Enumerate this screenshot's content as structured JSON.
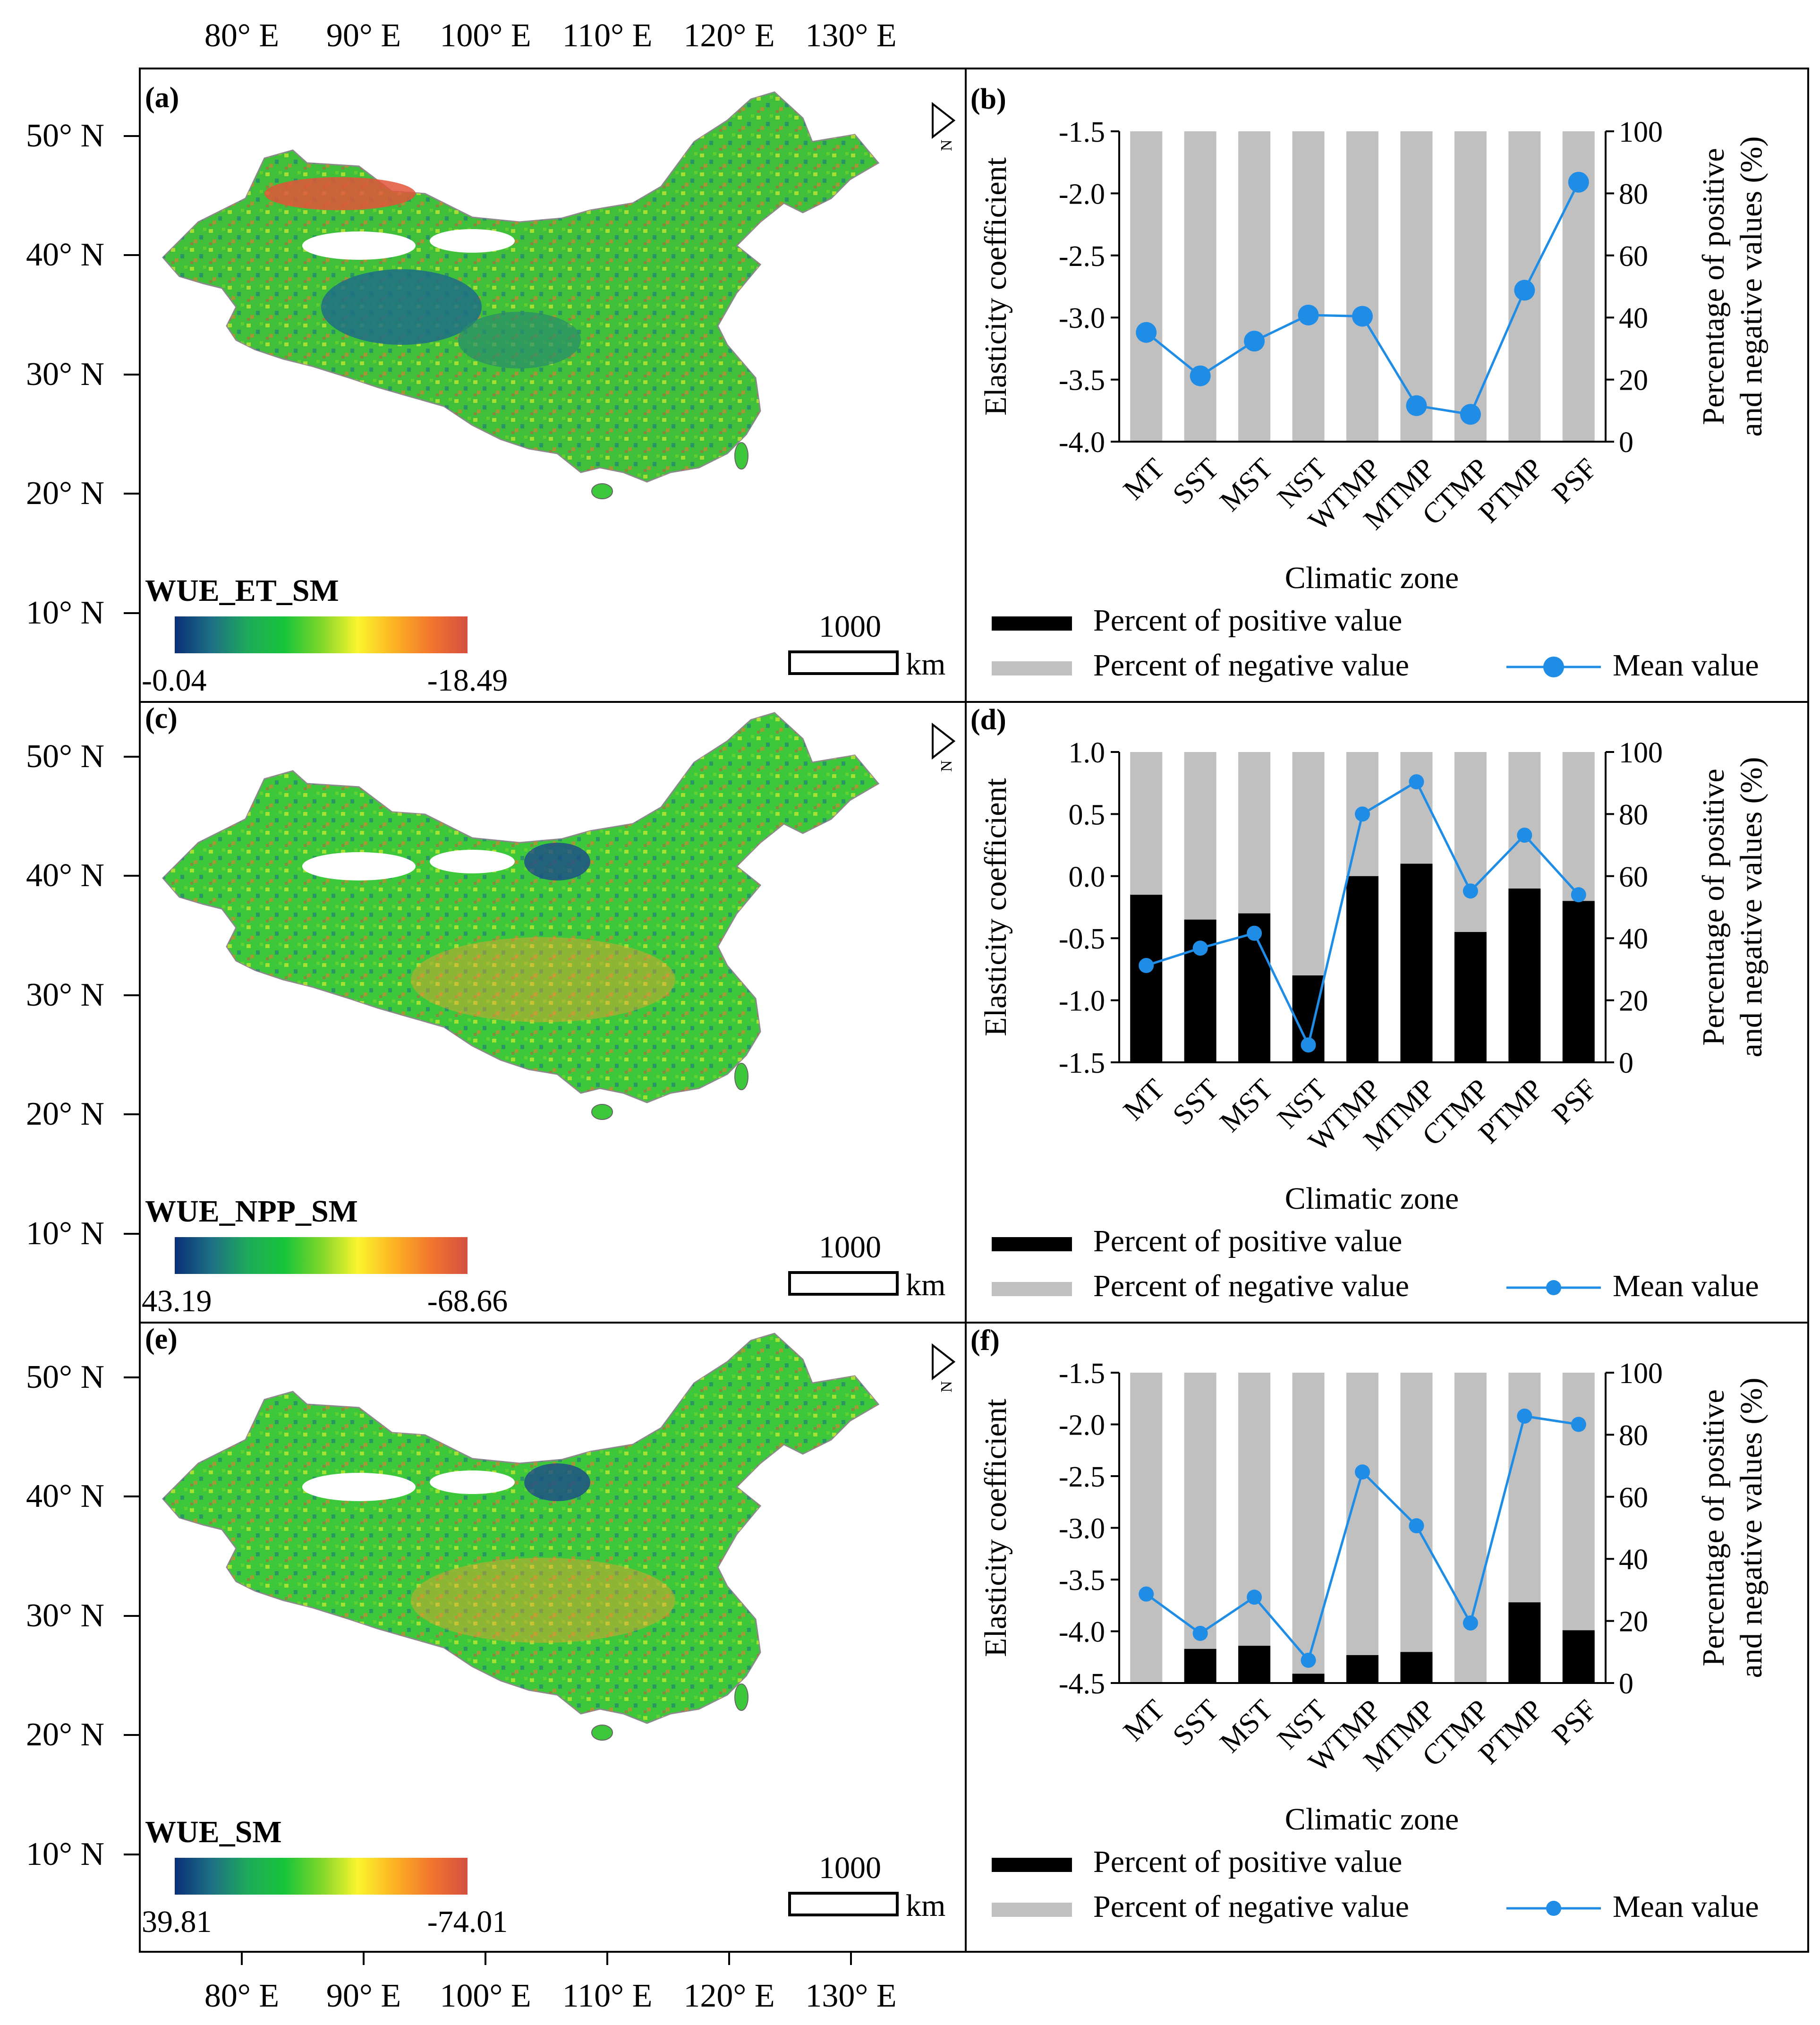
{
  "figure": {
    "lon_ticks": [
      "80° E",
      "90° E",
      "100° E",
      "110° E",
      "120° E",
      "130° E"
    ],
    "lat_ticks": [
      "50° N",
      "40° N",
      "30° N",
      "20° N",
      "10° N"
    ],
    "north_label": "N",
    "scale_value": "1000",
    "scale_unit": "km",
    "colors": {
      "ramp": [
        "#0b2f78",
        "#1d6f86",
        "#1faa5a",
        "#17c43a",
        "#7fd62a",
        "#fbf52e",
        "#fcb224",
        "#f2762f",
        "#d4503f"
      ],
      "positive_bar": "#000000",
      "negative_bar": "#c0c0c0",
      "mean_line": "#1f8ce6"
    }
  },
  "maps": [
    {
      "panel": "(a)",
      "legend_title": "WUE_ET_SM",
      "min_label": "-0.04",
      "max_label": "-18.49"
    },
    {
      "panel": "(c)",
      "legend_title": "WUE_NPP_SM",
      "min_label": "43.19",
      "max_label": "-68.66"
    },
    {
      "panel": "(e)",
      "legend_title": "WUE_SM",
      "min_label": "39.81",
      "max_label": "-74.01"
    }
  ],
  "chart_data": [
    {
      "panel": "(b)",
      "type": "bar",
      "categories": [
        "MT",
        "SST",
        "MST",
        "NST",
        "WTMP",
        "MTMP",
        "CTMP",
        "PTMP",
        "PSF"
      ],
      "xlabel": "Climatic zone",
      "ylabel": "Elasticity coefficient",
      "ylabel_right_1": "Percentage of positive",
      "ylabel_right_2": "and negative values (%)",
      "ylim": [
        -4.0,
        -1.5
      ],
      "yticks": [
        "-1.5",
        "-2.0",
        "-2.5",
        "-3.0",
        "-3.5",
        "-4.0"
      ],
      "y2lim": [
        0,
        100
      ],
      "y2ticks": [
        "100",
        "80",
        "60",
        "40",
        "20",
        "0"
      ],
      "series": [
        {
          "name": "Percent of positive value",
          "values": [
            0,
            0,
            0,
            0,
            0,
            0,
            0,
            0,
            0
          ]
        },
        {
          "name": "Percent of negative value",
          "values": [
            100,
            100,
            100,
            100,
            100,
            100,
            100,
            100,
            100
          ]
        },
        {
          "name": "Mean value",
          "values": [
            -3.12,
            -3.47,
            -3.19,
            -2.98,
            -2.99,
            -3.71,
            -3.78,
            -2.78,
            -1.91
          ]
        }
      ]
    },
    {
      "panel": "(d)",
      "type": "bar",
      "categories": [
        "MT",
        "SST",
        "MST",
        "NST",
        "WTMP",
        "MTMP",
        "CTMP",
        "PTMP",
        "PSF"
      ],
      "xlabel": "Climatic zone",
      "ylabel": "Elasticity coefficient",
      "ylabel_right_1": "Percentage of positive",
      "ylabel_right_2": "and negative values (%)",
      "ylim": [
        -1.5,
        1.0
      ],
      "yticks": [
        "1.0",
        "0.5",
        "0.0",
        "-0.5",
        "-1.0",
        "-1.5"
      ],
      "y2lim": [
        0,
        100
      ],
      "y2ticks": [
        "100",
        "80",
        "60",
        "40",
        "20",
        "0"
      ],
      "series": [
        {
          "name": "Percent of positive value",
          "values": [
            54,
            46,
            48,
            28,
            60,
            64,
            42,
            56,
            52
          ]
        },
        {
          "name": "Percent of negative value",
          "values": [
            46,
            54,
            52,
            72,
            40,
            36,
            58,
            44,
            48
          ]
        },
        {
          "name": "Mean value",
          "values": [
            -0.72,
            -0.58,
            -0.46,
            -1.36,
            0.5,
            0.76,
            -0.12,
            0.33,
            -0.15
          ]
        }
      ]
    },
    {
      "panel": "(f)",
      "type": "bar",
      "categories": [
        "MT",
        "SST",
        "MST",
        "NST",
        "WTMP",
        "MTMP",
        "CTMP",
        "PTMP",
        "PSF"
      ],
      "xlabel": "Climatic zone",
      "ylabel": "Elasticity coefficient",
      "ylabel_right_1": "Percentage of positive",
      "ylabel_right_2": "and negative values (%)",
      "ylim": [
        -4.5,
        -1.5
      ],
      "yticks": [
        "-1.5",
        "-2.0",
        "-2.5",
        "-3.0",
        "-3.5",
        "-4.0",
        "-4.5"
      ],
      "y2lim": [
        0,
        100
      ],
      "y2ticks": [
        "100",
        "80",
        "60",
        "40",
        "20",
        "0"
      ],
      "series": [
        {
          "name": "Percent of positive value",
          "values": [
            0,
            11,
            12,
            3,
            9,
            10,
            0,
            26,
            17
          ]
        },
        {
          "name": "Percent of negative value",
          "values": [
            100,
            89,
            88,
            97,
            91,
            90,
            100,
            74,
            83
          ]
        },
        {
          "name": "Mean value",
          "values": [
            -3.64,
            -4.02,
            -3.67,
            -4.28,
            -2.46,
            -2.98,
            -3.92,
            -1.92,
            -2.0
          ]
        }
      ]
    }
  ]
}
